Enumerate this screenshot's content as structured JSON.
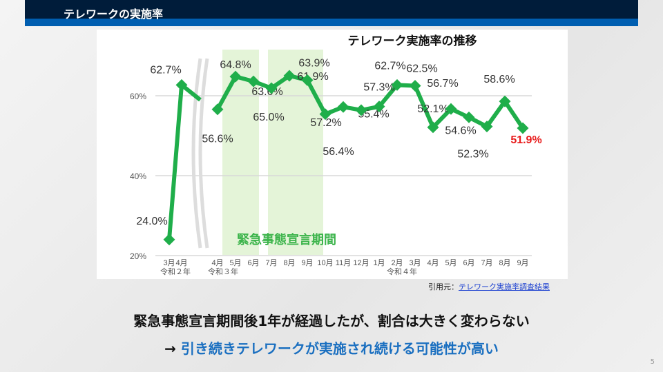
{
  "header": {
    "title": "テレワークの実施率"
  },
  "chart_data": {
    "type": "line",
    "title": "テレワーク実施率の推移",
    "ylabel": "",
    "xlabel": "",
    "ylim": [
      20,
      65
    ],
    "yticks": [
      "20%",
      "40%",
      "60%"
    ],
    "ytick_values": [
      20,
      40,
      60
    ],
    "categories": [
      "3月",
      "4月",
      "4月",
      "5月",
      "6月",
      "7月",
      "8月",
      "9月",
      "10月",
      "11月",
      "12月",
      "1月",
      "2月",
      "3月",
      "4月",
      "5月",
      "6月",
      "7月",
      "8月",
      "9月"
    ],
    "era_labels": [
      "令和２年",
      "令和３年",
      "令和４年"
    ],
    "values": [
      24.0,
      62.7,
      56.6,
      64.8,
      63.6,
      61.9,
      65.0,
      63.9,
      55.4,
      57.2,
      56.4,
      57.3,
      62.7,
      62.5,
      52.1,
      56.7,
      54.6,
      52.3,
      58.6,
      51.9
    ],
    "data_labels": [
      "24.0%",
      "62.7%",
      "56.6%",
      "64.8%",
      "63.6%",
      "61.9%",
      "65.0%",
      "63.9%",
      "55.4%",
      "57.2%",
      "56.4%",
      "57.3%",
      "62.7%",
      "62.5%",
      "52.1%",
      "56.7%",
      "54.6%",
      "52.3%",
      "58.6%",
      "51.9%"
    ],
    "annotation": "緊急事態宣言期間",
    "highlight_last_color": "#e81c1c",
    "line_color": "#1fae4a",
    "shade_color": "#e4f4d8",
    "grid": true
  },
  "source": {
    "label": "引用元：",
    "link": "テレワーク実施率調査結果"
  },
  "conclusion": {
    "line1": "緊急事態宣言期間後1年が経過したが、割合は大きく変わらない",
    "arrow": "→ ",
    "line2": "引き続きテレワークが実施され続ける可能性が高い"
  },
  "page_number": "5"
}
